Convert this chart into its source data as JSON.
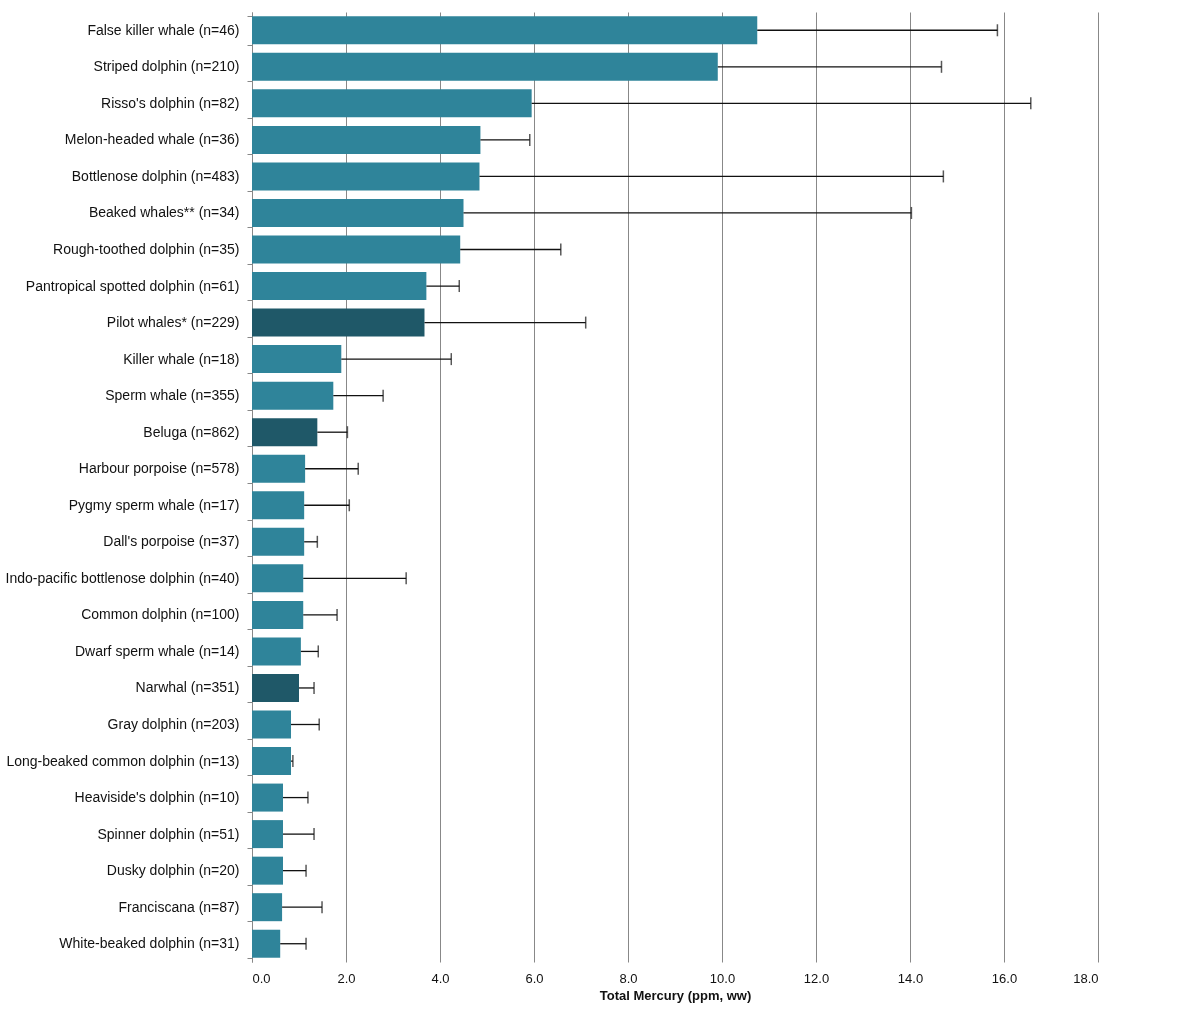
{
  "chart_data": {
    "type": "bar",
    "orientation": "horizontal",
    "xlabel": "Total Mercury (ppm, ww)",
    "categories": [
      "False killer whale (n=46)",
      "Striped dolphin (n=210)",
      "Risso's dolphin (n=82)",
      "Melon-headed whale (n=36)",
      "Bottlenose dolphin (n=483)",
      "Beaked whales** (n=34)",
      "Rough-toothed dolphin (n=35)",
      "Pantropical spotted dolphin (n=61)",
      "Pilot whales* (n=229)",
      "Killer whale (n=18)",
      "Sperm whale (n=355)",
      "Beluga (n=862)",
      "Harbour porpoise (n=578)",
      "Pygmy sperm whale (n=17)",
      "Dall's porpoise (n=37)",
      "Indo-pacific bottlenose dolphin (n=40)",
      "Common dolphin (n=100)",
      "Dwarf sperm whale (n=14)",
      "Narwhal (n=351)",
      "Gray dolphin (n=203)",
      "Long-beaked common dolphin (n=13)",
      "Heaviside's dolphin (n=10)",
      "Spinner dolphin (n=51)",
      "Dusky dolphin (n=20)",
      "Franciscana (n=87)",
      "White-beaked dolphin (n=31)"
    ],
    "values": [
      10.75,
      9.91,
      5.95,
      4.86,
      4.84,
      4.5,
      4.43,
      3.71,
      3.67,
      1.9,
      1.73,
      1.39,
      1.13,
      1.11,
      1.11,
      1.09,
      1.09,
      1.04,
      1.0,
      0.83,
      0.83,
      0.66,
      0.66,
      0.66,
      0.64,
      0.6
    ],
    "errors": [
      [
        10.75,
        15.86
      ],
      [
        9.91,
        14.67
      ],
      [
        5.95,
        16.57
      ],
      [
        4.86,
        5.91
      ],
      [
        4.84,
        14.71
      ],
      [
        4.5,
        14.03
      ],
      [
        4.43,
        6.57
      ],
      [
        3.71,
        4.41
      ],
      [
        3.67,
        7.1
      ],
      [
        1.9,
        4.24
      ],
      [
        1.73,
        2.79
      ],
      [
        1.39,
        2.03
      ],
      [
        1.13,
        2.26
      ],
      [
        1.11,
        2.07
      ],
      [
        1.11,
        1.39
      ],
      [
        1.09,
        3.28
      ],
      [
        1.09,
        1.81
      ],
      [
        1.04,
        1.41
      ],
      [
        1.0,
        1.32
      ],
      [
        0.83,
        1.43
      ],
      [
        0.83,
        0.87
      ],
      [
        0.66,
        1.19
      ],
      [
        0.66,
        1.32
      ],
      [
        0.66,
        1.15
      ],
      [
        0.64,
        1.49
      ],
      [
        0.6,
        1.15
      ]
    ],
    "colors": [
      "#2f849a",
      "#2f849a",
      "#2f849a",
      "#2f849a",
      "#2f849a",
      "#2f849a",
      "#2f849a",
      "#2f849a",
      "#1f5868",
      "#2f849a",
      "#2f849a",
      "#1f5868",
      "#2f849a",
      "#2f849a",
      "#2f849a",
      "#2f849a",
      "#2f849a",
      "#2f849a",
      "#1f5868",
      "#2f849a",
      "#2f849a",
      "#2f849a",
      "#2f849a",
      "#2f849a",
      "#2f849a",
      "#2f849a"
    ],
    "xlim": [
      0,
      18
    ],
    "xticks": [
      {
        "value": 0,
        "label": "0.0"
      },
      {
        "value": 2,
        "label": "2.0"
      },
      {
        "value": 4,
        "label": "4.0"
      },
      {
        "value": 6,
        "label": "6.0"
      },
      {
        "value": 8,
        "label": "8.0"
      },
      {
        "value": 10,
        "label": "10.0"
      },
      {
        "value": 12,
        "label": "12.0"
      },
      {
        "value": 14,
        "label": "14.0"
      },
      {
        "value": 16,
        "label": "16.0"
      },
      {
        "value": 18,
        "label": "18.0"
      }
    ],
    "grid": "x"
  }
}
